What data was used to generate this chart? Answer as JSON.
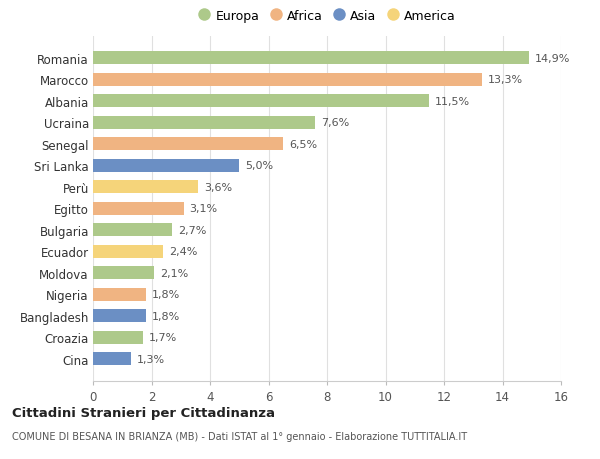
{
  "countries": [
    "Romania",
    "Marocco",
    "Albania",
    "Ucraina",
    "Senegal",
    "Sri Lanka",
    "Perù",
    "Egitto",
    "Bulgaria",
    "Ecuador",
    "Moldova",
    "Nigeria",
    "Bangladesh",
    "Croazia",
    "Cina"
  ],
  "values": [
    14.9,
    13.3,
    11.5,
    7.6,
    6.5,
    5.0,
    3.6,
    3.1,
    2.7,
    2.4,
    2.1,
    1.8,
    1.8,
    1.7,
    1.3
  ],
  "labels": [
    "14,9%",
    "13,3%",
    "11,5%",
    "7,6%",
    "6,5%",
    "5,0%",
    "3,6%",
    "3,1%",
    "2,7%",
    "2,4%",
    "2,1%",
    "1,8%",
    "1,8%",
    "1,7%",
    "1,3%"
  ],
  "continents": [
    "Europa",
    "Africa",
    "Europa",
    "Europa",
    "Africa",
    "Asia",
    "America",
    "Africa",
    "Europa",
    "America",
    "Europa",
    "Africa",
    "Asia",
    "Europa",
    "Asia"
  ],
  "colors": {
    "Europa": "#adc98a",
    "Africa": "#f0b482",
    "Asia": "#6b8fc4",
    "America": "#f5d47a"
  },
  "legend_order": [
    "Europa",
    "Africa",
    "Asia",
    "America"
  ],
  "title": "Cittadini Stranieri per Cittadinanza",
  "subtitle": "COMUNE DI BESANA IN BRIANZA (MB) - Dati ISTAT al 1° gennaio - Elaborazione TUTTITALIA.IT",
  "xlim": [
    0,
    16
  ],
  "xticks": [
    0,
    2,
    4,
    6,
    8,
    10,
    12,
    14,
    16
  ],
  "bg_color": "#ffffff",
  "grid_color": "#e0e0e0"
}
